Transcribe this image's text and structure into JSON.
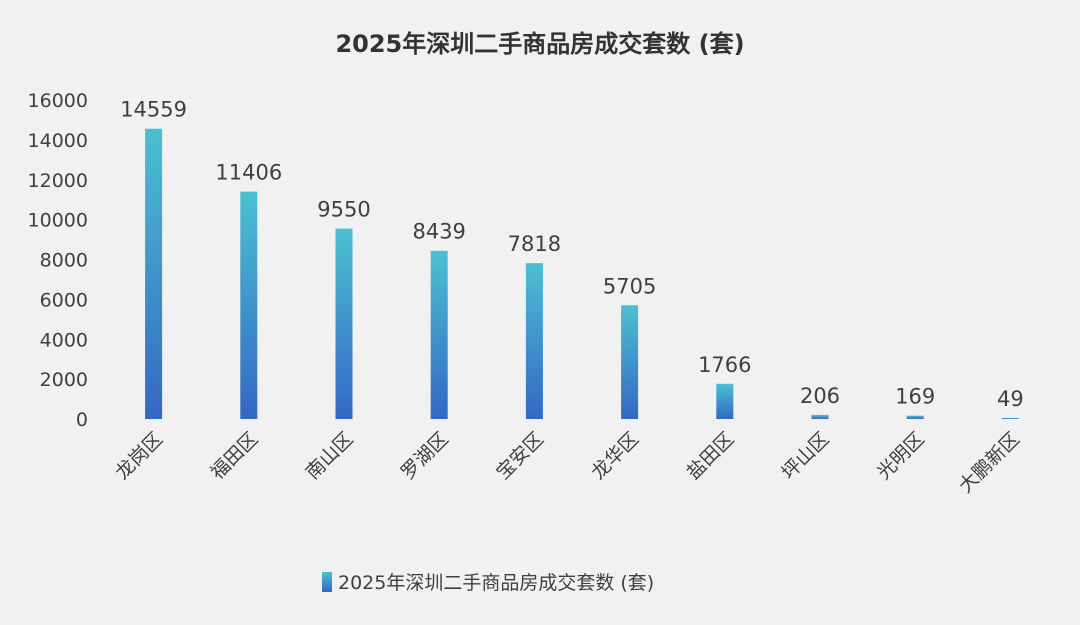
{
  "chart_data": {
    "type": "bar",
    "title": "2025年深圳二手商品房成交套数 (套)",
    "categories": [
      "龙岗区",
      "福田区",
      "南山区",
      "罗湖区",
      "宝安区",
      "龙华区",
      "盐田区",
      "坪山区",
      "光明区",
      "大鹏新区"
    ],
    "series": [
      {
        "name": "2025年深圳二手商品房成交套数 (套)",
        "values": [
          14559,
          11406,
          9550,
          8439,
          7818,
          5705,
          1766,
          206,
          169,
          49
        ]
      }
    ],
    "ylim": [
      0,
      16000
    ],
    "yticks": [
      0,
      2000,
      4000,
      6000,
      8000,
      10000,
      12000,
      14000,
      16000
    ],
    "grid": false,
    "legend_position": "bottom",
    "data_labels": true,
    "colors": {
      "bar_top": "#4cc0d2",
      "bar_bottom": "#3467c4",
      "text": "#404040"
    }
  }
}
